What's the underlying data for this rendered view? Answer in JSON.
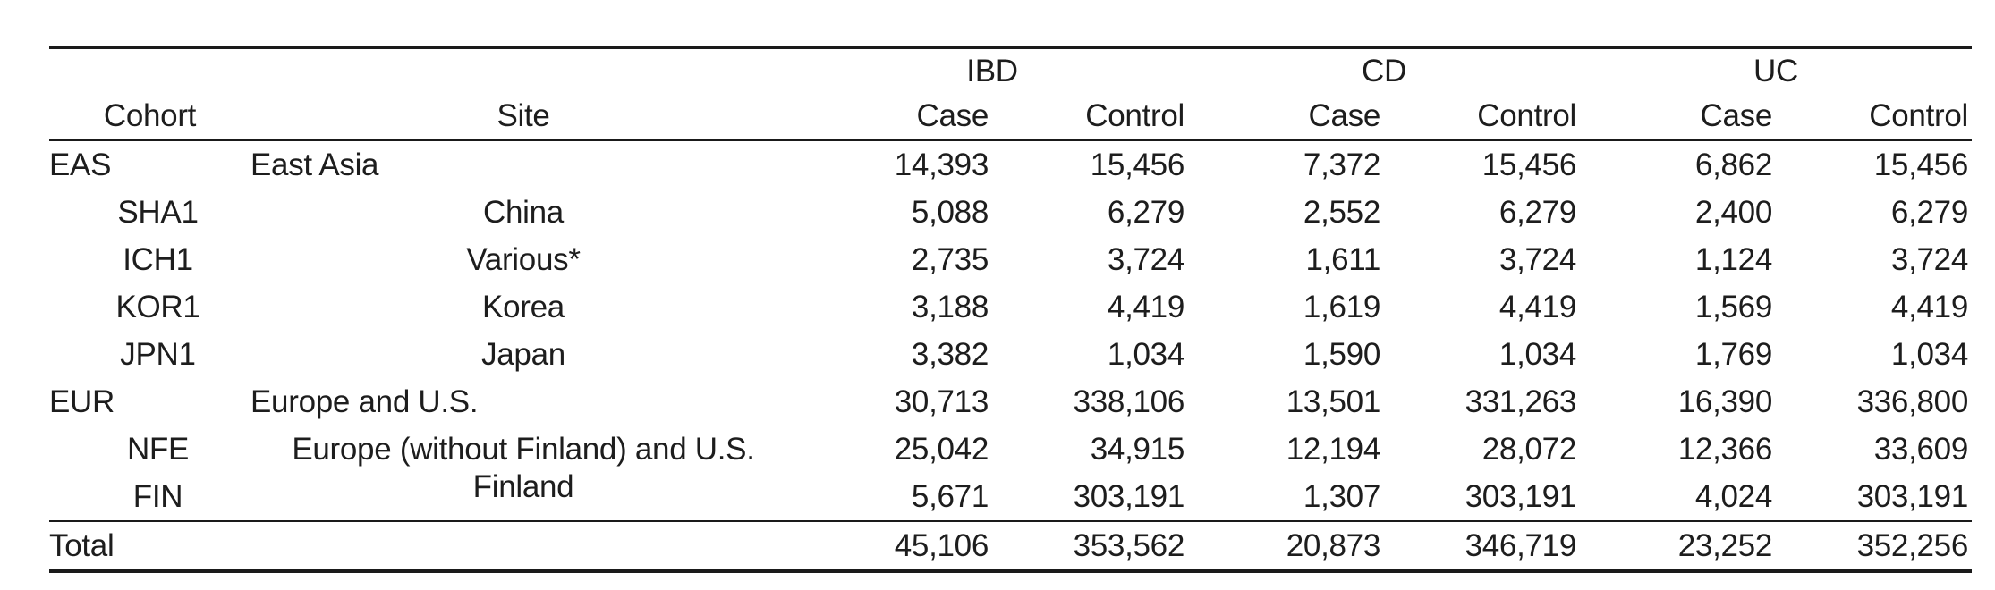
{
  "colors": {
    "background": "#ffffff",
    "text": "#1d1d1d",
    "rule": "#1a1a1a"
  },
  "table": {
    "group_headers": {
      "ibd": "IBD",
      "cd": "CD",
      "uc": "UC"
    },
    "column_headers": {
      "cohort": "Cohort",
      "site": "Site",
      "ibd_case": "Case",
      "ibd_control": "Control",
      "cd_case": "Case",
      "cd_control": "Control",
      "uc_case": "Case",
      "uc_control": "Control"
    },
    "rows": [
      {
        "cohort": "EAS",
        "site": "East Asia",
        "ibd_case": "14,393",
        "ibd_control": "15,456",
        "cd_case": "7,372",
        "cd_control": "15,456",
        "uc_case": "6,862",
        "uc_control": "15,456"
      },
      {
        "cohort": "SHA1",
        "site": "China",
        "ibd_case": "5,088",
        "ibd_control": "6,279",
        "cd_case": "2,552",
        "cd_control": "6,279",
        "uc_case": "2,400",
        "uc_control": "6,279"
      },
      {
        "cohort": "ICH1",
        "site": "Various*",
        "ibd_case": "2,735",
        "ibd_control": "3,724",
        "cd_case": "1,611",
        "cd_control": "3,724",
        "uc_case": "1,124",
        "uc_control": "3,724"
      },
      {
        "cohort": "KOR1",
        "site": "Korea",
        "ibd_case": "3,188",
        "ibd_control": "4,419",
        "cd_case": "1,619",
        "cd_control": "4,419",
        "uc_case": "1,569",
        "uc_control": "4,419"
      },
      {
        "cohort": "JPN1",
        "site": "Japan",
        "ibd_case": "3,382",
        "ibd_control": "1,034",
        "cd_case": "1,590",
        "cd_control": "1,034",
        "uc_case": "1,769",
        "uc_control": "1,034"
      },
      {
        "cohort": "EUR",
        "site": "Europe and U.S.",
        "ibd_case": "30,713",
        "ibd_control": "338,106",
        "cd_case": "13,501",
        "cd_control": "331,263",
        "uc_case": "16,390",
        "uc_control": "336,800"
      },
      {
        "cohort": "NFE",
        "site": "Europe (without Finland) and U.S.",
        "ibd_case": "25,042",
        "ibd_control": "34,915",
        "cd_case": "12,194",
        "cd_control": "28,072",
        "uc_case": "12,366",
        "uc_control": "33,609"
      },
      {
        "cohort": "FIN",
        "site": "Finland",
        "ibd_case": "5,671",
        "ibd_control": "303,191",
        "cd_case": "1,307",
        "cd_control": "303,191",
        "uc_case": "4,024",
        "uc_control": "303,191"
      }
    ],
    "total_row": {
      "cohort": "Total",
      "site": "",
      "ibd_case": "45,106",
      "ibd_control": "353,562",
      "cd_case": "20,873",
      "cd_control": "346,719",
      "uc_case": "23,252",
      "uc_control": "352,256"
    }
  }
}
